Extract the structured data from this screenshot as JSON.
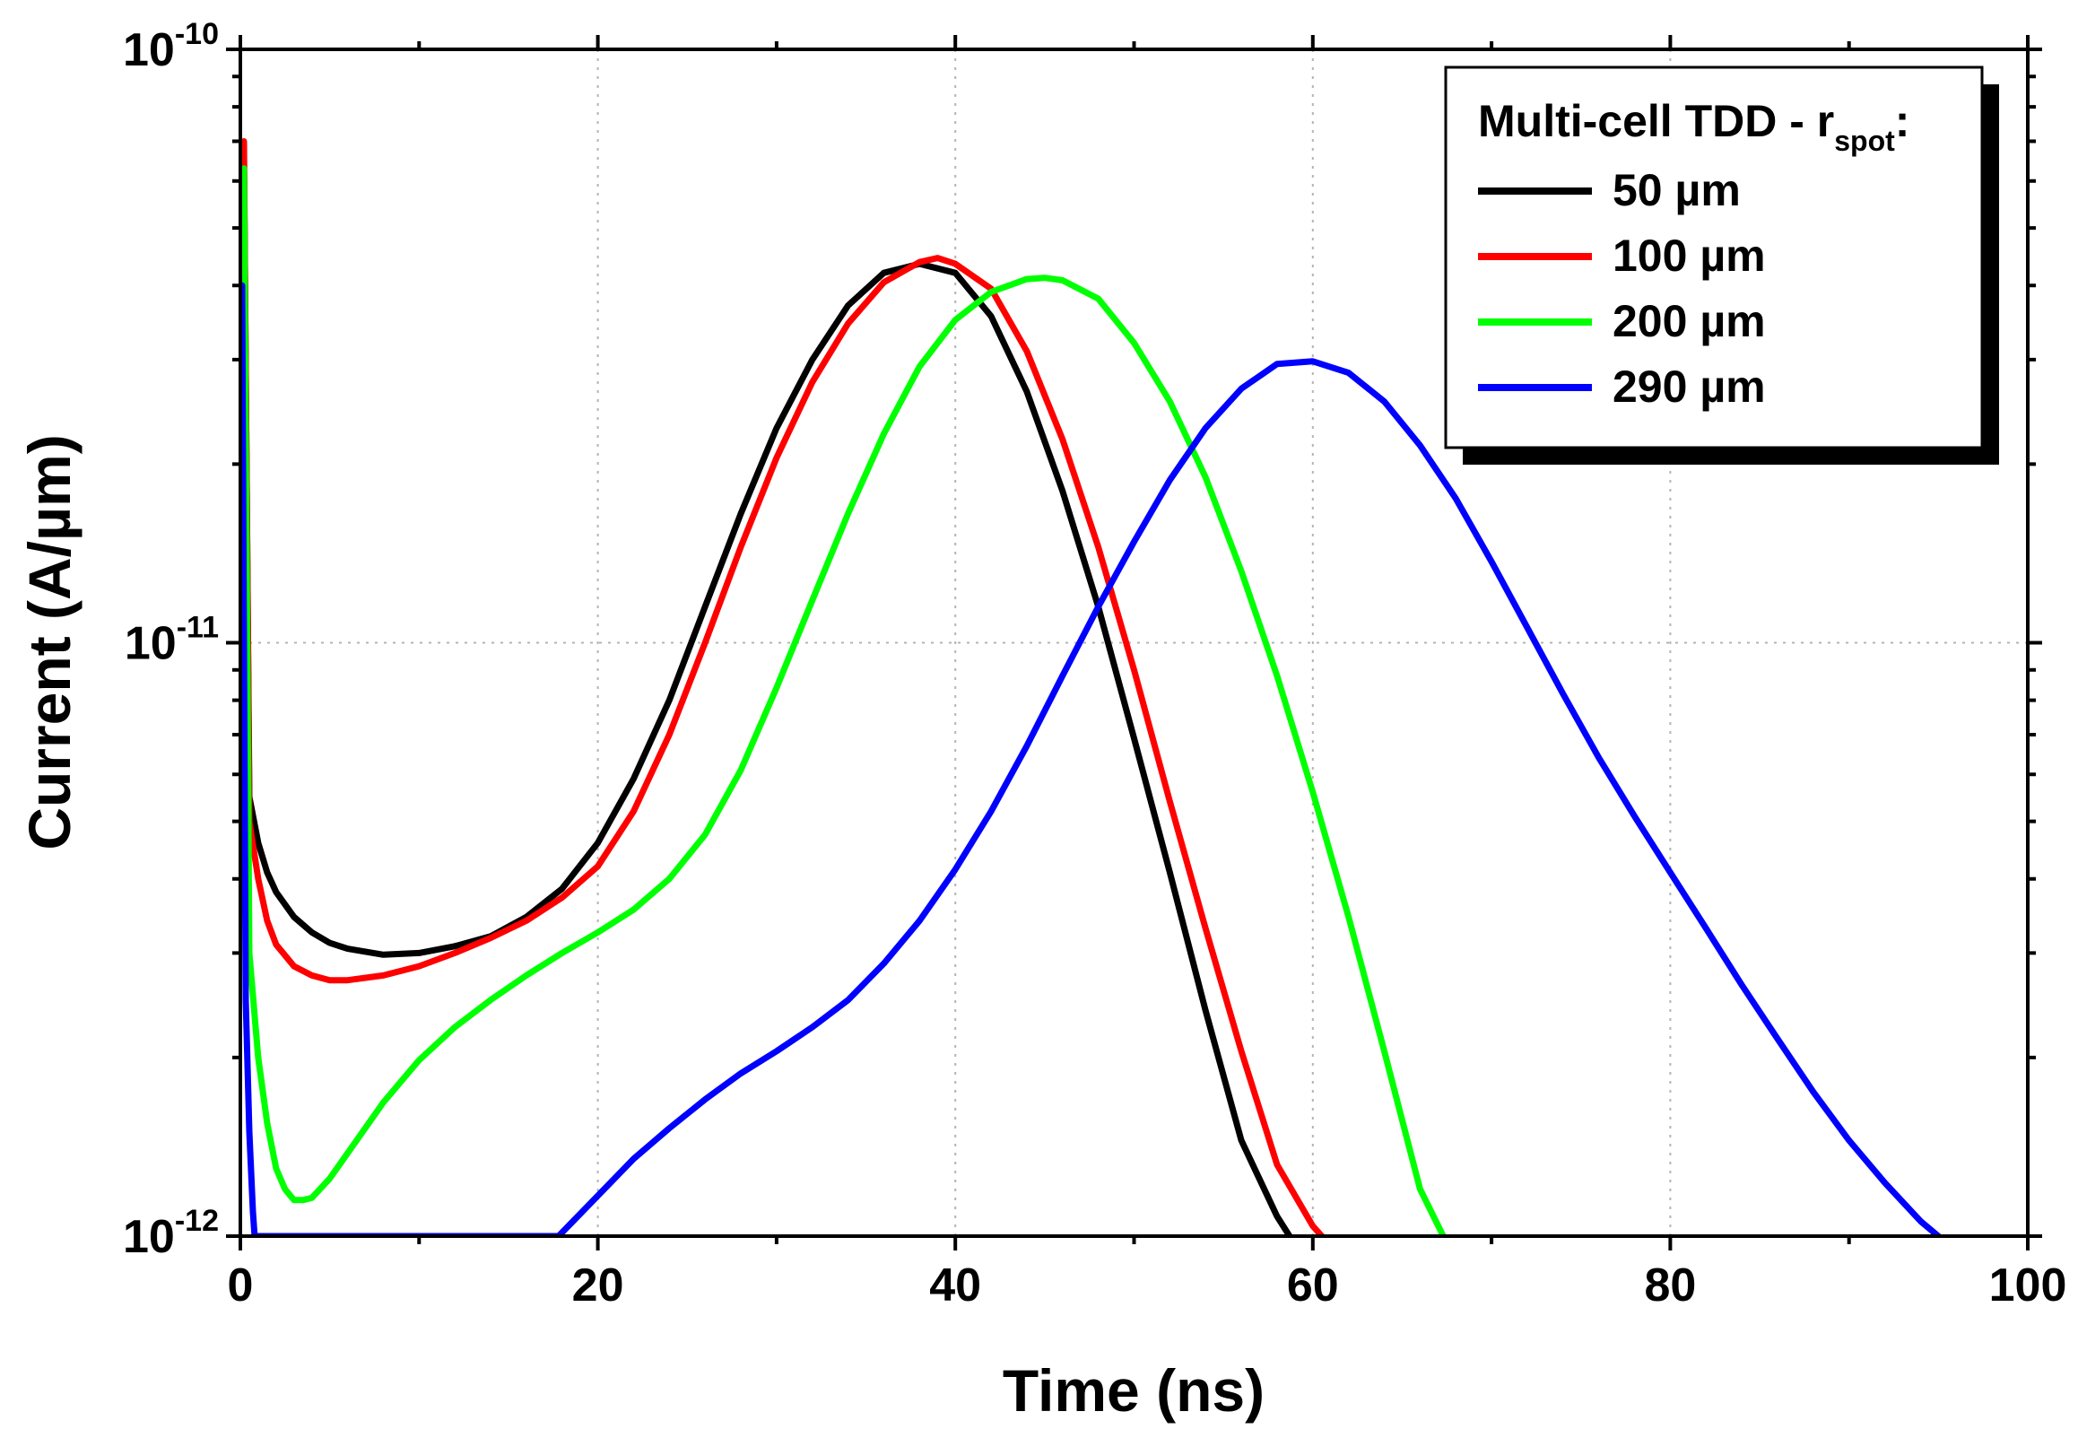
{
  "chart_data": {
    "type": "line",
    "xlabel": "Time (ns)",
    "ylabel": "Current (A/µm)",
    "xlim": [
      0,
      100
    ],
    "ylim": [
      1e-12,
      1e-10
    ],
    "y_scale": "log",
    "x_ticks": [
      0,
      20,
      40,
      60,
      80,
      100
    ],
    "x_tick_labels": [
      "0",
      "20",
      "40",
      "60",
      "80",
      "100"
    ],
    "y_ticks": [
      1e-12,
      1e-11,
      1e-10
    ],
    "y_tick_labels": [
      {
        "base": "10",
        "exp": "-12"
      },
      {
        "base": "10",
        "exp": "-11"
      },
      {
        "base": "10",
        "exp": "-10"
      }
    ],
    "grid": true,
    "legend": {
      "position": "top-right",
      "title": "Multi-cell TDD - r",
      "title_sub": "spot",
      "title_suffix": ":"
    },
    "series": [
      {
        "name": "50 µm",
        "color": "#000000",
        "x": [
          0.2,
          0.5,
          1,
          1.5,
          2,
          3,
          4,
          5,
          6,
          8,
          10,
          12,
          14,
          16,
          18,
          20,
          22,
          24,
          26,
          28,
          30,
          32,
          34,
          36,
          38,
          40,
          42,
          44,
          46,
          48,
          50,
          52,
          54,
          56,
          58,
          58.7
        ],
        "y": [
          6.5e-11,
          5.5e-12,
          4.6e-12,
          4.1e-12,
          3.8e-12,
          3.45e-12,
          3.25e-12,
          3.12e-12,
          3.05e-12,
          2.98e-12,
          3e-12,
          3.08e-12,
          3.2e-12,
          3.45e-12,
          3.85e-12,
          4.6e-12,
          5.9e-12,
          8e-12,
          1.15e-11,
          1.65e-11,
          2.3e-11,
          3e-11,
          3.7e-11,
          4.2e-11,
          4.35e-11,
          4.2e-11,
          3.55e-11,
          2.65e-11,
          1.8e-11,
          1.15e-11,
          6.9e-12,
          4.1e-12,
          2.4e-12,
          1.45e-12,
          1.08e-12,
          1e-12
        ]
      },
      {
        "name": "100 µm",
        "color": "#ff0000",
        "x": [
          0.2,
          0.5,
          1,
          1.5,
          2,
          3,
          4,
          5,
          6,
          8,
          10,
          12,
          14,
          16,
          18,
          20,
          22,
          24,
          26,
          28,
          30,
          32,
          34,
          36,
          38,
          39,
          40,
          42,
          44,
          46,
          48,
          50,
          52,
          54,
          56,
          58,
          60,
          60.5
        ],
        "y": [
          7e-11,
          5e-12,
          4e-12,
          3.4e-12,
          3.1e-12,
          2.85e-12,
          2.75e-12,
          2.7e-12,
          2.7e-12,
          2.75e-12,
          2.85e-12,
          3e-12,
          3.18e-12,
          3.4e-12,
          3.72e-12,
          4.2e-12,
          5.2e-12,
          7e-12,
          1e-11,
          1.45e-11,
          2.05e-11,
          2.75e-11,
          3.45e-11,
          4.05e-11,
          4.38e-11,
          4.45e-11,
          4.35e-11,
          3.95e-11,
          3.1e-11,
          2.2e-11,
          1.45e-11,
          9e-12,
          5.4e-12,
          3.3e-12,
          2.05e-12,
          1.32e-12,
          1.04e-12,
          1e-12
        ]
      },
      {
        "name": "200 µm",
        "color": "#00ff00",
        "x": [
          0.2,
          0.5,
          1,
          1.5,
          2,
          2.5,
          3,
          3.5,
          4,
          5,
          6,
          8,
          10,
          12,
          14,
          16,
          18,
          20,
          22,
          24,
          26,
          28,
          30,
          32,
          34,
          36,
          38,
          40,
          42,
          44,
          45,
          46,
          48,
          50,
          52,
          54,
          56,
          58,
          60,
          62,
          64,
          66,
          67.3
        ],
        "y": [
          6.3e-11,
          3e-12,
          2e-12,
          1.55e-12,
          1.3e-12,
          1.2e-12,
          1.15e-12,
          1.15e-12,
          1.16e-12,
          1.25e-12,
          1.38e-12,
          1.68e-12,
          1.98e-12,
          2.25e-12,
          2.5e-12,
          2.75e-12,
          3e-12,
          3.25e-12,
          3.55e-12,
          4e-12,
          4.75e-12,
          6.1e-12,
          8.4e-12,
          1.18e-11,
          1.65e-11,
          2.25e-11,
          2.92e-11,
          3.5e-11,
          3.9e-11,
          4.1e-11,
          4.12e-11,
          4.08e-11,
          3.8e-11,
          3.2e-11,
          2.55e-11,
          1.9e-11,
          1.32e-11,
          8.8e-12,
          5.6e-12,
          3.45e-12,
          2.05e-12,
          1.2e-12,
          1e-12
        ]
      },
      {
        "name": "290 µm",
        "color": "#0000ff",
        "x": [
          0.1,
          0.3,
          0.5,
          0.7,
          0.8,
          17.8,
          20,
          22,
          24,
          26,
          28,
          30,
          32,
          34,
          36,
          38,
          40,
          42,
          44,
          46,
          48,
          50,
          52,
          54,
          56,
          58,
          60,
          62,
          64,
          66,
          68,
          70,
          72,
          74,
          76,
          78,
          80,
          82,
          84,
          86,
          88,
          90,
          92,
          94,
          95
        ],
        "y": [
          4e-11,
          2.5e-12,
          1.5e-12,
          1.1e-12,
          1e-12,
          1e-12,
          1.17e-12,
          1.35e-12,
          1.52e-12,
          1.7e-12,
          1.88e-12,
          2.05e-12,
          2.25e-12,
          2.5e-12,
          2.88e-12,
          3.4e-12,
          4.15e-12,
          5.2e-12,
          6.7e-12,
          8.8e-12,
          1.15e-11,
          1.48e-11,
          1.88e-11,
          2.3e-11,
          2.68e-11,
          2.95e-11,
          2.98e-11,
          2.85e-11,
          2.55e-11,
          2.15e-11,
          1.75e-11,
          1.37e-11,
          1.06e-11,
          8.2e-12,
          6.4e-12,
          5.1e-12,
          4.1e-12,
          3.3e-12,
          2.65e-12,
          2.15e-12,
          1.75e-12,
          1.45e-12,
          1.23e-12,
          1.06e-12,
          1e-12
        ]
      }
    ]
  }
}
